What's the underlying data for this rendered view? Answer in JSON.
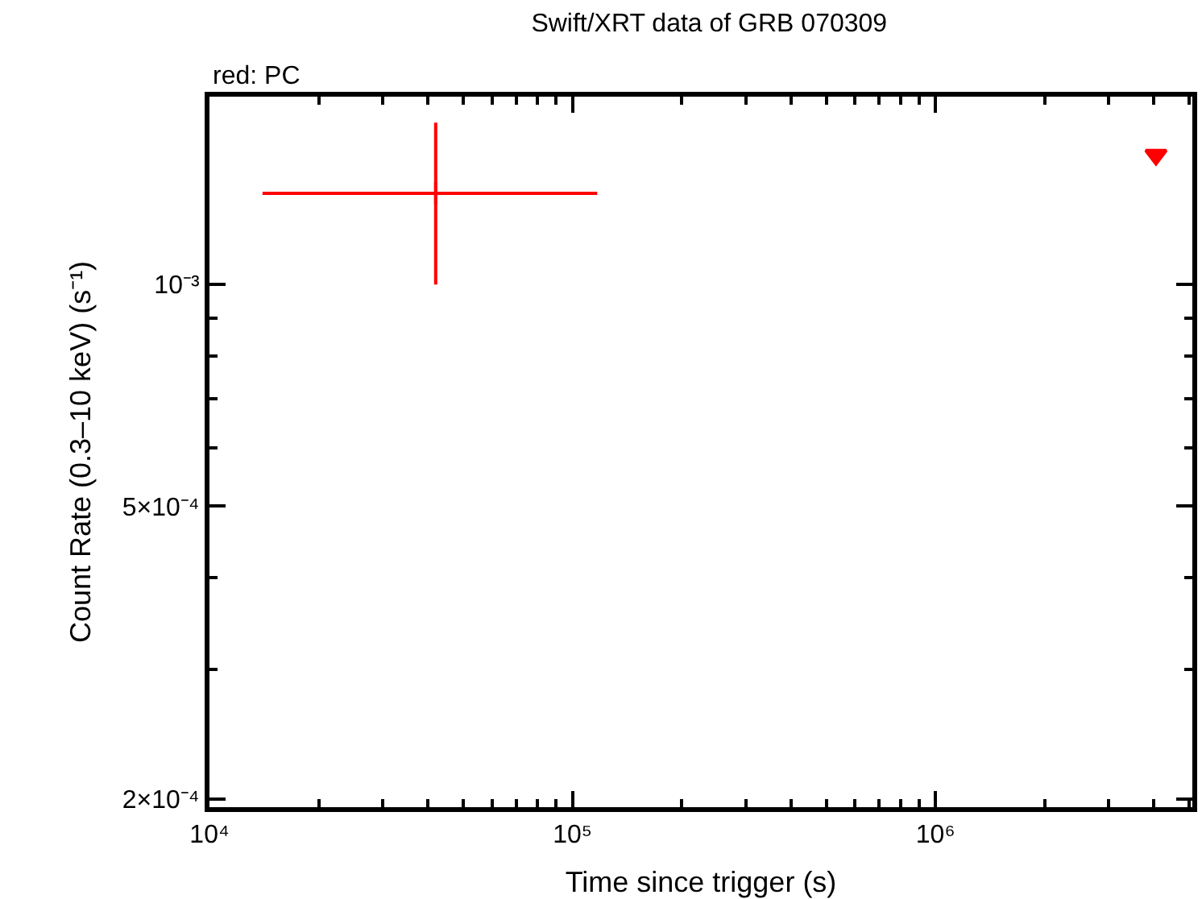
{
  "chart_data": {
    "type": "scatter",
    "title": "Swift/XRT data of GRB 070309",
    "subtitle": "red: PC",
    "xlabel": "Time since trigger (s)",
    "ylabel": "Count Rate (0.3–10 keV) (s⁻¹)",
    "series": [
      {
        "color": "#ff0000",
        "x": [
          42000
        ],
        "values": [
          0.00133
        ],
        "errors": [
          [
            0.001,
            0.00166
          ]
        ],
        "xerrors": [
          [
            14000,
            117000
          ]
        ],
        "marker": "cross"
      },
      {
        "color": "#ff0000",
        "x": [
          4050000
        ],
        "values": [
          0.0015
        ],
        "marker": "triangle"
      }
    ],
    "xlim": [
      10000,
      5100000
    ],
    "ylim": [
      0.000195,
      0.0018
    ],
    "xticks": [
      {
        "value": 10000,
        "label": "10⁴"
      },
      {
        "value": 20000,
        "label": null
      },
      {
        "value": 30000,
        "label": null
      },
      {
        "value": 40000,
        "label": null
      },
      {
        "value": 50000,
        "label": null
      },
      {
        "value": 60000,
        "label": null
      },
      {
        "value": 70000,
        "label": null
      },
      {
        "value": 80000,
        "label": null
      },
      {
        "value": 90000,
        "label": null
      },
      {
        "value": 100000,
        "label": "10⁵"
      },
      {
        "value": 200000,
        "label": null
      },
      {
        "value": 300000,
        "label": null
      },
      {
        "value": 400000,
        "label": null
      },
      {
        "value": 500000,
        "label": null
      },
      {
        "value": 600000,
        "label": null
      },
      {
        "value": 700000,
        "label": null
      },
      {
        "value": 800000,
        "label": null
      },
      {
        "value": 900000,
        "label": null
      },
      {
        "value": 1000000,
        "label": "10⁶"
      },
      {
        "value": 2000000,
        "label": null
      },
      {
        "value": 3000000,
        "label": null
      },
      {
        "value": 4000000,
        "label": null
      },
      {
        "value": 5000000,
        "label": null
      }
    ],
    "yticks": [
      {
        "value": 0.0002,
        "label": "2×10⁻⁴"
      },
      {
        "value": 0.0003,
        "label": null
      },
      {
        "value": 0.0004,
        "label": null
      },
      {
        "value": 0.0005,
        "label": "5×10⁻⁴"
      },
      {
        "value": 0.0006,
        "label": null
      },
      {
        "value": 0.0007,
        "label": null
      },
      {
        "value": 0.0008,
        "label": null
      },
      {
        "value": 0.0009,
        "label": null
      },
      {
        "value": 0.001,
        "label": "10⁻³"
      }
    ],
    "log": "xy"
  }
}
